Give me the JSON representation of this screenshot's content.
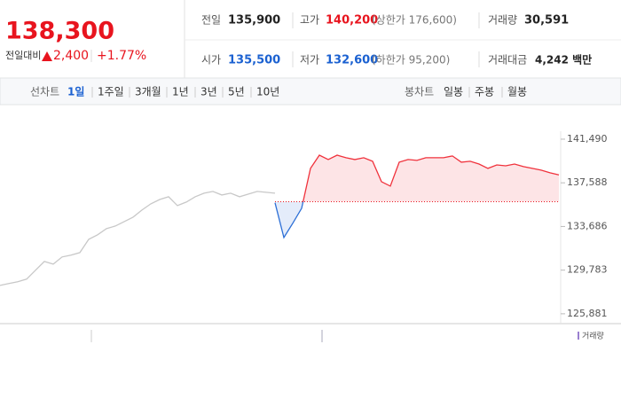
{
  "header": {
    "price": "138,300",
    "change_label": "전일대비",
    "change": "2,400",
    "change_rate": "+1.77%",
    "stats": [
      [
        {
          "label": "전일",
          "value": "135,900"
        },
        {
          "label": "고가",
          "value": "140,200",
          "note": "(상한가 176,600)"
        },
        {
          "label": "거래량",
          "value": "30,591"
        }
      ],
      [
        {
          "label": "시가",
          "value": "135,500"
        },
        {
          "label": "저가",
          "value": "132,600",
          "note": "(하한가 95,200)"
        },
        {
          "label": "거래대금",
          "value": "4,242 백만"
        }
      ]
    ]
  },
  "nav": {
    "line_chart": "선차트",
    "periods": [
      "1일",
      "1주일",
      "3개월",
      "1년",
      "3년",
      "5년",
      "10년"
    ],
    "candle_chart": "봉차트",
    "candle_periods": [
      "일봉",
      "주봉",
      "월봉"
    ]
  },
  "chart_data": {
    "type": "line",
    "baseline": 135900,
    "baseline_color": "#e8141e",
    "series": [
      {
        "color": "#c8c8c8",
        "values": [
          128420,
          128580,
          128740,
          128980,
          129770,
          130560,
          130320,
          130960,
          131120,
          131350,
          132540,
          132940,
          133490,
          133730,
          134120,
          134520,
          135150,
          135710,
          136100,
          136340,
          135550,
          135870,
          136340,
          136660,
          136820,
          136500,
          136660,
          136340,
          136580,
          136820,
          136740,
          136660,
          null,
          null,
          null,
          null,
          null,
          null,
          null,
          null,
          null,
          null,
          null,
          null,
          null,
          null,
          null,
          null,
          null,
          null,
          null,
          null,
          null,
          null,
          null,
          null,
          null,
          null,
          null,
          null,
          null,
          null,
          null,
          null
        ]
      },
      {
        "up_color": "#f0323c",
        "down_color": "#2c6fd6",
        "values": [
          null,
          null,
          null,
          null,
          null,
          null,
          null,
          null,
          null,
          null,
          null,
          null,
          null,
          null,
          null,
          null,
          null,
          null,
          null,
          null,
          null,
          null,
          null,
          null,
          null,
          null,
          null,
          null,
          null,
          null,
          null,
          135800,
          132700,
          133970,
          135310,
          138880,
          140060,
          139670,
          140060,
          139830,
          139670,
          139830,
          139510,
          137690,
          137290,
          139430,
          139670,
          139590,
          139830,
          139830,
          139830,
          139990,
          139430,
          139510,
          139270,
          138880,
          139190,
          139110,
          139270,
          139040,
          138880,
          138720,
          138480,
          138300
        ]
      }
    ],
    "ylim": [
      125000,
      142200
    ],
    "yticks": [
      {
        "value": 141490,
        "label": "141,490"
      },
      {
        "value": 137588,
        "label": "137,588"
      },
      {
        "value": 133686,
        "label": "133,686"
      },
      {
        "value": 129783,
        "label": "129,783"
      },
      {
        "value": 125881,
        "label": "125,881"
      }
    ],
    "volume_label": "거래량"
  }
}
